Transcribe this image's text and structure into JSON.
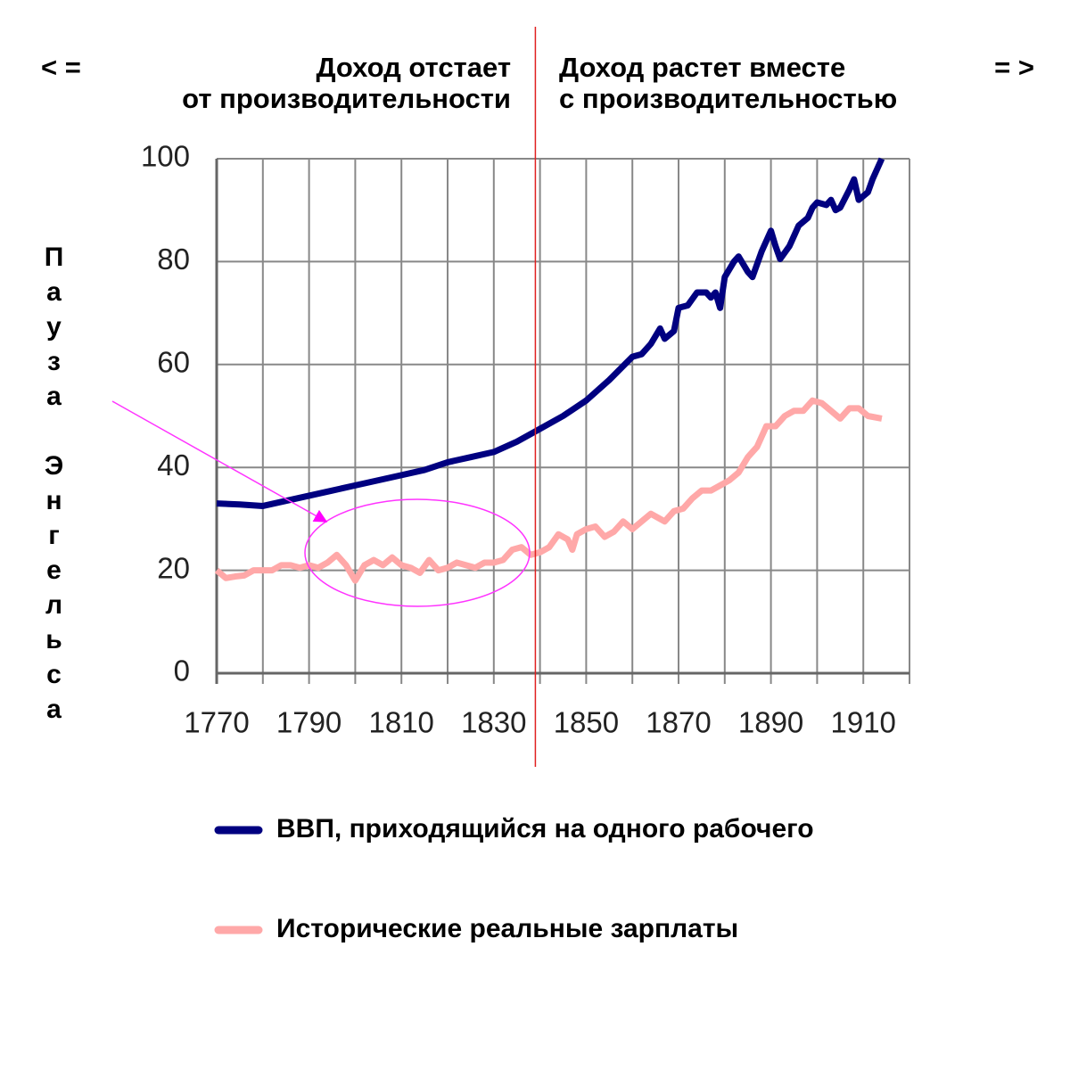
{
  "chart_data": {
    "type": "line",
    "header_left": [
      "Доход отстает",
      "от производительности"
    ],
    "header_right": [
      "Доход растет вместе",
      "с производительностью"
    ],
    "arrow_left": "< =",
    "arrow_right": "= >",
    "vertical_label": "Пауза Энгельса",
    "divider_year": 1839,
    "xlim": [
      1770,
      1920
    ],
    "xticks": [
      1770,
      1790,
      1810,
      1830,
      1850,
      1870,
      1890,
      1910
    ],
    "xgrid": [
      1770,
      1780,
      1790,
      1800,
      1810,
      1820,
      1830,
      1840,
      1850,
      1860,
      1870,
      1880,
      1890,
      1900,
      1910,
      1920
    ],
    "ylim": [
      0,
      100
    ],
    "yticks": [
      0,
      20,
      40,
      60,
      80,
      100
    ],
    "grid": true,
    "series": [
      {
        "name": "ВВП, приходящийся на одного рабочего",
        "color": "#000080",
        "x": [
          1770,
          1775,
          1780,
          1785,
          1790,
          1795,
          1800,
          1805,
          1810,
          1815,
          1820,
          1825,
          1830,
          1835,
          1840,
          1845,
          1850,
          1855,
          1860,
          1862,
          1864,
          1866,
          1867,
          1869,
          1870,
          1872,
          1874,
          1876,
          1877,
          1878,
          1879,
          1880,
          1882,
          1883,
          1885,
          1886,
          1888,
          1889,
          1890,
          1891,
          1892,
          1894,
          1896,
          1898,
          1899,
          1900,
          1902,
          1903,
          1904,
          1905,
          1907,
          1908,
          1909,
          1911,
          1912,
          1914
        ],
        "values": [
          33,
          32.8,
          32.5,
          33.5,
          34.5,
          35.5,
          36.5,
          37.5,
          38.5,
          39.5,
          41,
          42,
          43,
          45,
          47.5,
          50,
          53,
          57,
          61.5,
          62,
          64,
          67,
          65,
          66.5,
          71,
          71.5,
          74,
          74,
          73,
          74,
          71,
          77,
          80,
          81,
          78,
          77,
          82,
          84,
          86,
          83,
          80.5,
          83,
          87,
          88.5,
          90.5,
          91.5,
          91,
          92,
          90,
          90.5,
          94,
          96,
          92,
          93.5,
          96,
          100
        ]
      },
      {
        "name": "Исторические реальные зарплаты",
        "color": "#ffa8a8",
        "x": [
          1770,
          1772,
          1774,
          1776,
          1778,
          1780,
          1782,
          1784,
          1786,
          1788,
          1790,
          1792,
          1794,
          1796,
          1798,
          1800,
          1802,
          1804,
          1806,
          1808,
          1810,
          1812,
          1814,
          1816,
          1818,
          1820,
          1822,
          1824,
          1826,
          1828,
          1830,
          1832,
          1834,
          1836,
          1838,
          1840,
          1842,
          1844,
          1846,
          1847,
          1848,
          1850,
          1852,
          1854,
          1856,
          1858,
          1860,
          1862,
          1864,
          1866,
          1867,
          1869,
          1871,
          1873,
          1875,
          1877,
          1879,
          1881,
          1883,
          1885,
          1887,
          1889,
          1891,
          1893,
          1895,
          1897,
          1899,
          1901,
          1903,
          1905,
          1907,
          1909,
          1911,
          1914
        ],
        "values": [
          20,
          18.5,
          18.8,
          19,
          20,
          20,
          20,
          21,
          21,
          20.5,
          21,
          20.5,
          21.5,
          23,
          21,
          18,
          21,
          22,
          21,
          22.5,
          21,
          20.5,
          19.5,
          22,
          20,
          20.5,
          21.5,
          21,
          20.5,
          21.5,
          21.5,
          22,
          24,
          24.5,
          23,
          23.5,
          24.5,
          27,
          26,
          24,
          27,
          28,
          28.5,
          26.5,
          27.5,
          29.5,
          28,
          29.5,
          31,
          30,
          29.5,
          31.5,
          32,
          34,
          35.5,
          35.5,
          36.5,
          37.5,
          39,
          42,
          44,
          48,
          48,
          50,
          51,
          51,
          53,
          52.5,
          51,
          49.5,
          51.5,
          51.5,
          50,
          49.5
        ]
      }
    ]
  }
}
